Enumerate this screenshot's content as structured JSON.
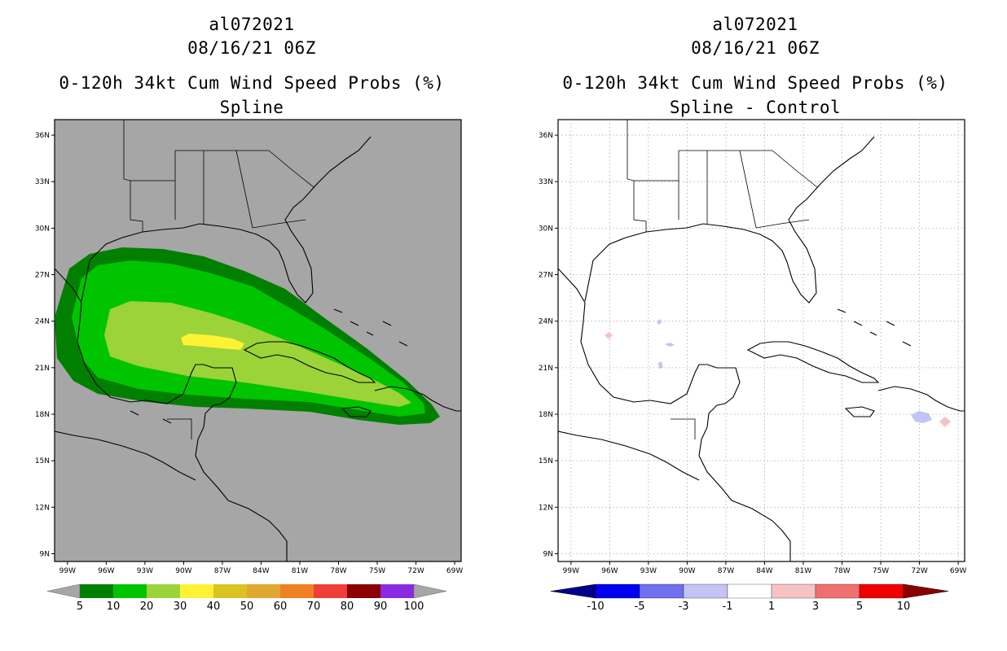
{
  "panels": [
    {
      "storm_id": "al072021",
      "datetime": "08/16/21 06Z",
      "product": "0-120h 34kt Cum Wind Speed Probs (%)",
      "subtitle": "Spline",
      "background_color": "#a6a6a6",
      "colorbar": {
        "labels": [
          "5",
          "10",
          "20",
          "30",
          "40",
          "50",
          "60",
          "70",
          "80",
          "90",
          "100"
        ],
        "colors": [
          "#007f00",
          "#00c400",
          "#9bd339",
          "#fff234",
          "#d9c422",
          "#e0a830",
          "#ef8023",
          "#ee3f3a",
          "#8b0000",
          "#8a2be2"
        ],
        "end_color": "#a6a6a6"
      }
    },
    {
      "storm_id": "al072021",
      "datetime": "08/16/21 06Z",
      "product": "0-120h 34kt Cum Wind Speed Probs (%)",
      "subtitle": "Spline - Control",
      "background_color": "#ffffff",
      "colorbar": {
        "labels": [
          "-10",
          "-5",
          "-3",
          "-1",
          "1",
          "3",
          "5",
          "10"
        ],
        "colors": [
          "#0000f0",
          "#6f6ff0",
          "#c3c3f5",
          "#ffffff",
          "#f5c3c3",
          "#f06f6f",
          "#f00000"
        ],
        "start_color": "#00008b",
        "end_color": "#8b0000"
      }
    }
  ],
  "axes": {
    "lat_labels": [
      "36N",
      "33N",
      "30N",
      "27N",
      "24N",
      "21N",
      "18N",
      "15N",
      "12N",
      "9N"
    ],
    "lon_labels": [
      "99W",
      "96W",
      "93W",
      "90W",
      "87W",
      "84W",
      "81W",
      "78W",
      "75W",
      "72W",
      "69W"
    ]
  },
  "probability_zones": [
    {
      "level": "5-10%",
      "color": "#007f00"
    },
    {
      "level": "10-20%",
      "color": "#00c400"
    },
    {
      "level": "20-30%",
      "color": "#9bd339"
    },
    {
      "level": "30-40%",
      "color": "#fff234"
    }
  ]
}
